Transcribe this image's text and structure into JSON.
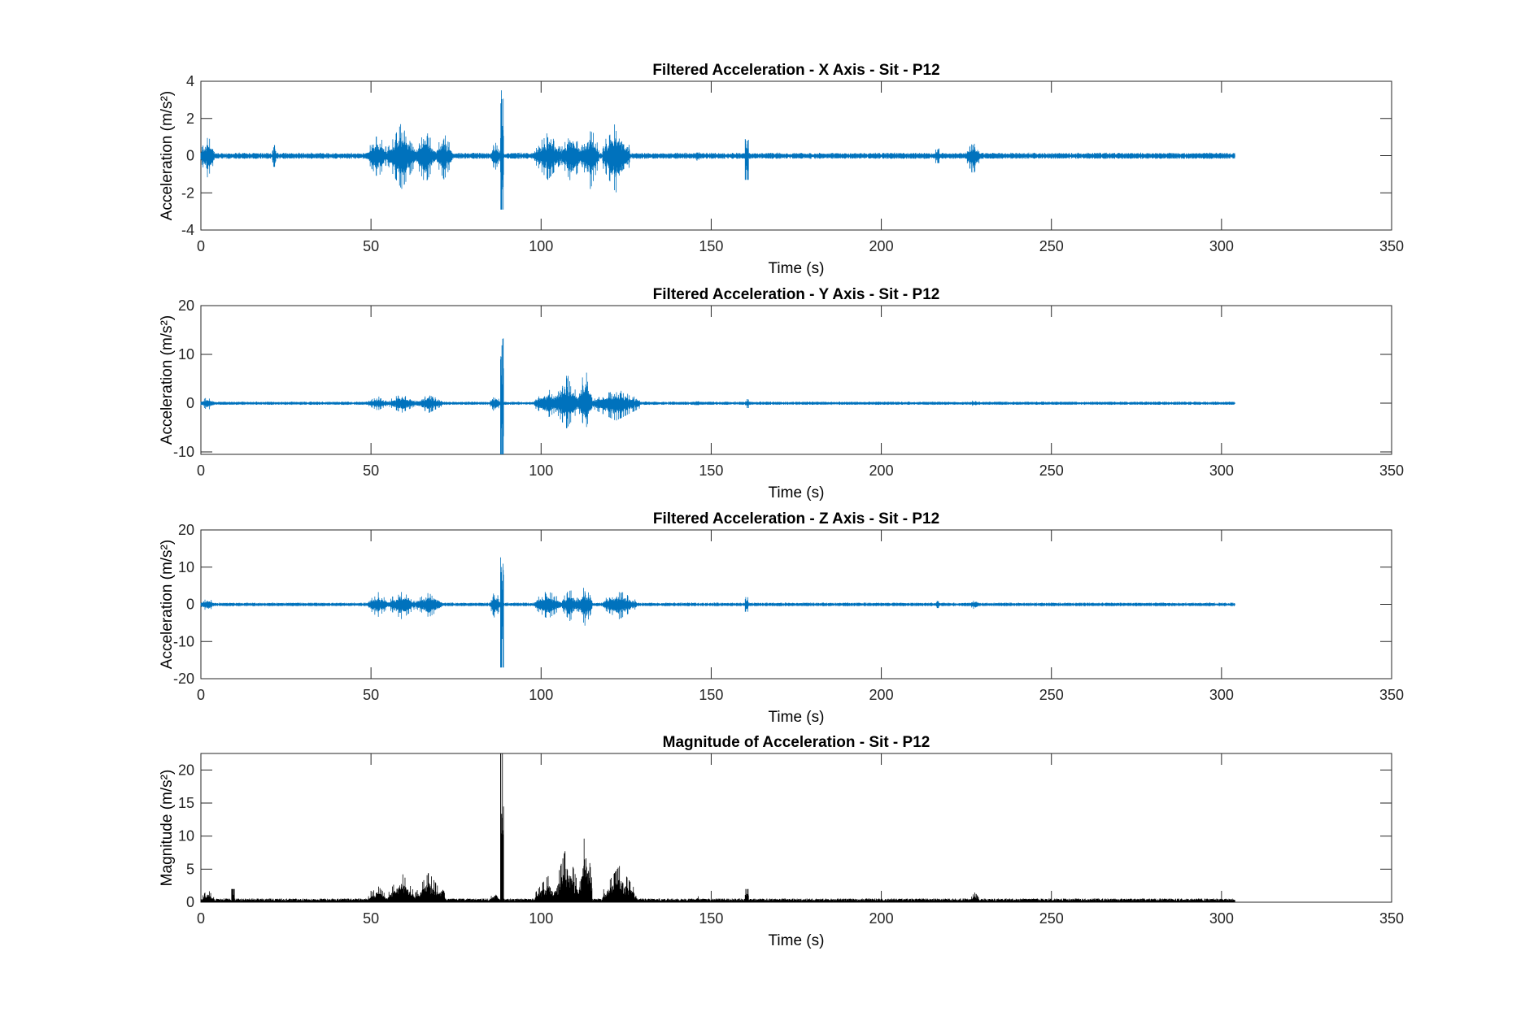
{
  "chart_data": [
    {
      "type": "line",
      "title": "Filtered Acceleration - X Axis - Sit - P12",
      "xlabel": "Time (s)",
      "ylabel": "Acceleration (m/s²)",
      "xlim": [
        0,
        350
      ],
      "ylim": [
        -4,
        4
      ],
      "xticks": [
        0,
        50,
        100,
        150,
        200,
        250,
        300,
        350
      ],
      "yticks": [
        -4,
        -2,
        0,
        2,
        4
      ],
      "color": "#0072BD",
      "grid": false,
      "series": [
        {
          "x_end": 304,
          "baseline": 0.12,
          "bursts": [
            {
              "t": 0,
              "dur": 4,
              "amp": 1.2
            },
            {
              "t": 21,
              "dur": 1,
              "amp": 0.6
            },
            {
              "t": 49,
              "dur": 6,
              "amp": 1.2
            },
            {
              "t": 55,
              "dur": 8,
              "amp": 1.8
            },
            {
              "t": 63,
              "dur": 6,
              "amp": 1.5
            },
            {
              "t": 69,
              "dur": 5,
              "amp": 1.3
            },
            {
              "t": 85,
              "dur": 3,
              "amp": 0.8
            },
            {
              "t": 88,
              "dur": 1,
              "amp": 3.6,
              "min": -2.9
            },
            {
              "t": 98,
              "dur": 8,
              "amp": 1.3
            },
            {
              "t": 106,
              "dur": 6,
              "amp": 1.5
            },
            {
              "t": 112,
              "dur": 5,
              "amp": 1.8
            },
            {
              "t": 118,
              "dur": 8,
              "amp": 2.0,
              "min": -2.5
            },
            {
              "t": 145,
              "dur": 2,
              "amp": 0.3
            },
            {
              "t": 160,
              "dur": 1,
              "amp": 0.9,
              "min": -1.3
            },
            {
              "t": 216,
              "dur": 1,
              "amp": 0.4
            },
            {
              "t": 225,
              "dur": 4,
              "amp": 0.9,
              "min": -1.3
            }
          ]
        }
      ]
    },
    {
      "type": "line",
      "title": "Filtered Acceleration - Y Axis - Sit - P12",
      "xlabel": "Time (s)",
      "ylabel": "Acceleration (m/s²)",
      "xlim": [
        0,
        350
      ],
      "ylim": [
        -10.5,
        20
      ],
      "xticks": [
        0,
        50,
        100,
        150,
        200,
        250,
        300,
        350
      ],
      "yticks": [
        -10,
        0,
        10,
        20
      ],
      "color": "#0072BD",
      "grid": false,
      "series": [
        {
          "x_end": 304,
          "baseline": 0.25,
          "bursts": [
            {
              "t": 0,
              "dur": 4,
              "amp": 1.5
            },
            {
              "t": 49,
              "dur": 6,
              "amp": 1.5
            },
            {
              "t": 55,
              "dur": 8,
              "amp": 2.0
            },
            {
              "t": 63,
              "dur": 8,
              "amp": 2.0
            },
            {
              "t": 85,
              "dur": 3,
              "amp": 2.0
            },
            {
              "t": 88,
              "dur": 1,
              "amp": 14.5,
              "min": -10.5
            },
            {
              "t": 98,
              "dur": 8,
              "amp": 3.0
            },
            {
              "t": 104,
              "dur": 7,
              "amp": 6.5,
              "min": -6.5
            },
            {
              "t": 111,
              "dur": 4,
              "amp": 8.0,
              "min": -7.0
            },
            {
              "t": 115,
              "dur": 14,
              "amp": 3.0,
              "min": -4.5
            },
            {
              "t": 145,
              "dur": 2,
              "amp": 0.8
            },
            {
              "t": 160,
              "dur": 1,
              "amp": 1.0
            },
            {
              "t": 226,
              "dur": 3,
              "amp": 0.8
            }
          ]
        }
      ]
    },
    {
      "type": "line",
      "title": "Filtered Acceleration - Z Axis - Sit - P12",
      "xlabel": "Time (s)",
      "ylabel": "Acceleration (m/s²)",
      "xlim": [
        0,
        350
      ],
      "ylim": [
        -20,
        20
      ],
      "xticks": [
        0,
        50,
        100,
        150,
        200,
        250,
        300,
        350
      ],
      "yticks": [
        -20,
        -10,
        0,
        10,
        20
      ],
      "color": "#0072BD",
      "grid": false,
      "series": [
        {
          "x_end": 304,
          "baseline": 0.35,
          "bursts": [
            {
              "t": 0,
              "dur": 4,
              "amp": 2.0
            },
            {
              "t": 49,
              "dur": 6,
              "amp": 3.5
            },
            {
              "t": 55,
              "dur": 8,
              "amp": 4.0
            },
            {
              "t": 63,
              "dur": 8,
              "amp": 3.5
            },
            {
              "t": 85,
              "dur": 3,
              "amp": 4.0
            },
            {
              "t": 88,
              "dur": 1,
              "amp": 13.0,
              "min": -17.0
            },
            {
              "t": 98,
              "dur": 8,
              "amp": 4.0
            },
            {
              "t": 106,
              "dur": 5,
              "amp": 4.5
            },
            {
              "t": 111,
              "dur": 4,
              "amp": 5.5,
              "min": -7.5
            },
            {
              "t": 118,
              "dur": 10,
              "amp": 4.0
            },
            {
              "t": 160,
              "dur": 1,
              "amp": 2.0
            },
            {
              "t": 216,
              "dur": 1,
              "amp": 1.0
            },
            {
              "t": 226,
              "dur": 3,
              "amp": 1.5
            }
          ]
        }
      ]
    },
    {
      "type": "line",
      "title": "Magnitude of Acceleration - Sit - P12",
      "xlabel": "Time (s)",
      "ylabel": "Magnitude (m/s²)",
      "xlim": [
        0,
        350
      ],
      "ylim": [
        0,
        22.5
      ],
      "xticks": [
        0,
        50,
        100,
        150,
        200,
        250,
        300,
        350
      ],
      "yticks": [
        0,
        5,
        10,
        15,
        20
      ],
      "color": "#000000",
      "grid": false,
      "series": [
        {
          "x_end": 304,
          "baseline": 0.4,
          "bursts": [
            {
              "t": 0,
              "dur": 4,
              "amp": 2.0
            },
            {
              "t": 9,
              "dur": 1,
              "amp": 2.0
            },
            {
              "t": 49,
              "dur": 6,
              "amp": 2.5
            },
            {
              "t": 55,
              "dur": 8,
              "amp": 4.5
            },
            {
              "t": 63,
              "dur": 8,
              "amp": 4.5
            },
            {
              "t": 70,
              "dur": 2,
              "amp": 4.0
            },
            {
              "t": 85,
              "dur": 3,
              "amp": 2.0
            },
            {
              "t": 88,
              "dur": 1,
              "amp": 22.5
            },
            {
              "t": 98,
              "dur": 8,
              "amp": 4.0
            },
            {
              "t": 104,
              "dur": 7,
              "amp": 8.5
            },
            {
              "t": 111,
              "dur": 4,
              "amp": 11.0
            },
            {
              "t": 118,
              "dur": 10,
              "amp": 5.5
            },
            {
              "t": 145,
              "dur": 2,
              "amp": 1.0
            },
            {
              "t": 160,
              "dur": 1,
              "amp": 2.0
            },
            {
              "t": 226,
              "dur": 3,
              "amp": 1.5
            }
          ]
        }
      ]
    }
  ]
}
